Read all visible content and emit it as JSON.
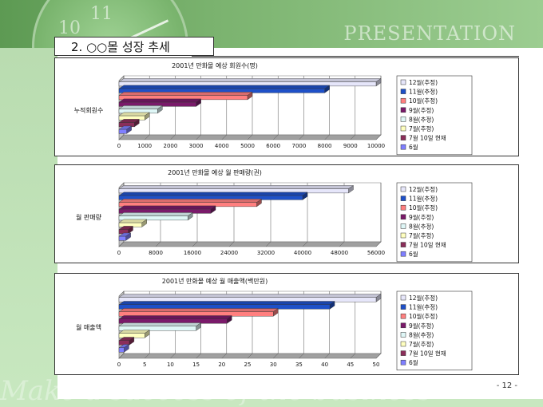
{
  "header": {
    "banner_text": "PRESENTATION",
    "clock_numbers": [
      "10",
      "11"
    ]
  },
  "slide": {
    "title": "2. ○○몰 성장 추세",
    "page_number": "- 12 -",
    "footer_text": "Make a success of the business"
  },
  "legend_categories": [
    "12월(추정)",
    "11월(추정)",
    "10월(추정)",
    "9월(추정)",
    "8월(추정)",
    "7월(추정)",
    "7월 10일 현재",
    "6월"
  ],
  "colors": [
    "#E6E6FA",
    "#1E50C8",
    "#FF7F7F",
    "#7A1A6A",
    "#DFF7F7",
    "#FFFFC0",
    "#8B2E5A",
    "#7F7FFF"
  ],
  "chart_data": [
    {
      "type": "bar",
      "title": "2001년 만화몰 예상 회원수(명)",
      "ylabel": "누적회원수",
      "xlim": [
        0,
        10000
      ],
      "ticks": [
        "0",
        "1000",
        "2000",
        "3000",
        "4000",
        "5000",
        "6000",
        "7000",
        "8000",
        "9000",
        "10000"
      ],
      "series": [
        {
          "name": "12월(추정)",
          "value": 10000
        },
        {
          "name": "11월(추정)",
          "value": 8000
        },
        {
          "name": "10월(추정)",
          "value": 5000
        },
        {
          "name": "9월(추정)",
          "value": 3000
        },
        {
          "name": "8월(추정)",
          "value": 1500
        },
        {
          "name": "7월(추정)",
          "value": 1000
        },
        {
          "name": "7월 10일 현재",
          "value": 600
        },
        {
          "name": "6월",
          "value": 300
        }
      ]
    },
    {
      "type": "bar",
      "title": "2001년 만화몰 예상 월 판매량(권)",
      "ylabel": "월 판매량",
      "xlim": [
        0,
        56000
      ],
      "ticks": [
        "0",
        "8000",
        "16000",
        "24000",
        "32000",
        "40000",
        "48000",
        "56000"
      ],
      "series": [
        {
          "name": "12월(추정)",
          "value": 50000
        },
        {
          "name": "11월(추정)",
          "value": 40000
        },
        {
          "name": "10월(추정)",
          "value": 30000
        },
        {
          "name": "9월(추정)",
          "value": 20000
        },
        {
          "name": "8월(추정)",
          "value": 15000
        },
        {
          "name": "7월(추정)",
          "value": 5000
        },
        {
          "name": "7월 10일 현재",
          "value": 2000
        },
        {
          "name": "6월",
          "value": 1500
        }
      ]
    },
    {
      "type": "bar",
      "title": "2001년 만화몰 예상 월 매출액(백만원)",
      "ylabel": "월 매출액",
      "xlim": [
        0,
        50
      ],
      "ticks": [
        "0",
        "5",
        "10",
        "15",
        "20",
        "25",
        "30",
        "35",
        "40",
        "45",
        "50"
      ],
      "series": [
        {
          "name": "12월(추정)",
          "value": 50
        },
        {
          "name": "11월(추정)",
          "value": 41
        },
        {
          "name": "10월(추정)",
          "value": 30
        },
        {
          "name": "9월(추정)",
          "value": 21
        },
        {
          "name": "8월(추정)",
          "value": 15
        },
        {
          "name": "7월(추정)",
          "value": 5
        },
        {
          "name": "7월 10일 현재",
          "value": 2
        },
        {
          "name": "6월",
          "value": 1
        }
      ]
    }
  ]
}
